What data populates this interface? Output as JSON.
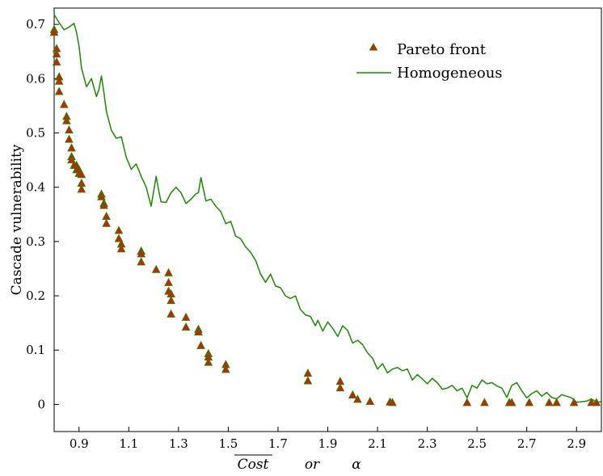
{
  "chart_data": {
    "type": "scatter",
    "xlabel": {
      "part1": "Cost",
      "part2": "or",
      "part3": "α"
    },
    "ylabel": "Cascade vulnerability",
    "xlim": [
      0.8,
      3.0
    ],
    "ylim": [
      -0.05,
      0.73
    ],
    "xticks": [
      "0.9",
      "1.1",
      "1.3",
      "1.5",
      "1.7",
      "1.9",
      "2.1",
      "2.3",
      "2.5",
      "2.7",
      "2.9"
    ],
    "yticks": [
      "0",
      "0.1",
      "0.2",
      "0.3",
      "0.4",
      "0.5",
      "0.6",
      "0.7"
    ],
    "grid": false,
    "legend_position": "top-right",
    "colors": {
      "pareto_fill": "#cc2200",
      "pareto_edge": "#2e7d00",
      "line": "#1a8a00"
    },
    "series": [
      {
        "name": "Pareto front",
        "kind": "markers",
        "points": [
          [
            0.8,
            0.69
          ],
          [
            0.8,
            0.685
          ],
          [
            0.81,
            0.655
          ],
          [
            0.81,
            0.645
          ],
          [
            0.81,
            0.63
          ],
          [
            0.82,
            0.603
          ],
          [
            0.82,
            0.595
          ],
          [
            0.82,
            0.576
          ],
          [
            0.84,
            0.552
          ],
          [
            0.85,
            0.53
          ],
          [
            0.85,
            0.522
          ],
          [
            0.86,
            0.505
          ],
          [
            0.86,
            0.488
          ],
          [
            0.87,
            0.472
          ],
          [
            0.87,
            0.456
          ],
          [
            0.87,
            0.45
          ],
          [
            0.88,
            0.44
          ],
          [
            0.89,
            0.44
          ],
          [
            0.89,
            0.432
          ],
          [
            0.9,
            0.432
          ],
          [
            0.9,
            0.425
          ],
          [
            0.91,
            0.423
          ],
          [
            0.91,
            0.407
          ],
          [
            0.91,
            0.396
          ],
          [
            0.99,
            0.387
          ],
          [
            0.99,
            0.382
          ],
          [
            1.0,
            0.37
          ],
          [
            1.0,
            0.366
          ],
          [
            1.01,
            0.346
          ],
          [
            1.01,
            0.333
          ],
          [
            1.06,
            0.32
          ],
          [
            1.06,
            0.305
          ],
          [
            1.07,
            0.295
          ],
          [
            1.07,
            0.286
          ],
          [
            1.15,
            0.282
          ],
          [
            1.15,
            0.277
          ],
          [
            1.15,
            0.262
          ],
          [
            1.21,
            0.248
          ],
          [
            1.26,
            0.242
          ],
          [
            1.26,
            0.224
          ],
          [
            1.26,
            0.208
          ],
          [
            1.27,
            0.203
          ],
          [
            1.27,
            0.191
          ],
          [
            1.27,
            0.166
          ],
          [
            1.33,
            0.16
          ],
          [
            1.33,
            0.142
          ],
          [
            1.38,
            0.138
          ],
          [
            1.38,
            0.133
          ],
          [
            1.39,
            0.108
          ],
          [
            1.42,
            0.093
          ],
          [
            1.42,
            0.087
          ],
          [
            1.42,
            0.077
          ],
          [
            1.49,
            0.073
          ],
          [
            1.49,
            0.064
          ],
          [
            1.82,
            0.057
          ],
          [
            1.82,
            0.043
          ],
          [
            1.95,
            0.042
          ],
          [
            1.95,
            0.03
          ],
          [
            2.0,
            0.017
          ],
          [
            2.02,
            0.009
          ],
          [
            2.07,
            0.005
          ],
          [
            2.15,
            0.004
          ],
          [
            2.16,
            0.003
          ],
          [
            2.46,
            0.003
          ],
          [
            2.53,
            0.003
          ],
          [
            2.63,
            0.003
          ],
          [
            2.64,
            0.003
          ],
          [
            2.71,
            0.003
          ],
          [
            2.79,
            0.003
          ],
          [
            2.82,
            0.003
          ],
          [
            2.89,
            0.003
          ],
          [
            2.96,
            0.003
          ],
          [
            2.98,
            0.003
          ]
        ]
      },
      {
        "name": "Homogeneous",
        "kind": "line",
        "points": [
          [
            0.8,
            0.718
          ],
          [
            0.82,
            0.703
          ],
          [
            0.84,
            0.69
          ],
          [
            0.86,
            0.695
          ],
          [
            0.88,
            0.702
          ],
          [
            0.89,
            0.685
          ],
          [
            0.9,
            0.66
          ],
          [
            0.91,
            0.62
          ],
          [
            0.93,
            0.585
          ],
          [
            0.95,
            0.6
          ],
          [
            0.97,
            0.567
          ],
          [
            0.98,
            0.58
          ],
          [
            0.99,
            0.605
          ],
          [
            1.0,
            0.575
          ],
          [
            1.01,
            0.54
          ],
          [
            1.03,
            0.505
          ],
          [
            1.05,
            0.49
          ],
          [
            1.07,
            0.493
          ],
          [
            1.09,
            0.455
          ],
          [
            1.11,
            0.433
          ],
          [
            1.13,
            0.443
          ],
          [
            1.15,
            0.42
          ],
          [
            1.17,
            0.4
          ],
          [
            1.19,
            0.365
          ],
          [
            1.21,
            0.42
          ],
          [
            1.22,
            0.395
          ],
          [
            1.23,
            0.373
          ],
          [
            1.25,
            0.372
          ],
          [
            1.27,
            0.39
          ],
          [
            1.29,
            0.4
          ],
          [
            1.31,
            0.39
          ],
          [
            1.33,
            0.37
          ],
          [
            1.35,
            0.378
          ],
          [
            1.37,
            0.388
          ],
          [
            1.38,
            0.39
          ],
          [
            1.39,
            0.418
          ],
          [
            1.41,
            0.375
          ],
          [
            1.43,
            0.378
          ],
          [
            1.45,
            0.365
          ],
          [
            1.47,
            0.355
          ],
          [
            1.49,
            0.333
          ],
          [
            1.51,
            0.337
          ],
          [
            1.53,
            0.31
          ],
          [
            1.55,
            0.305
          ],
          [
            1.57,
            0.29
          ],
          [
            1.59,
            0.28
          ],
          [
            1.61,
            0.265
          ],
          [
            1.63,
            0.24
          ],
          [
            1.65,
            0.225
          ],
          [
            1.67,
            0.24
          ],
          [
            1.69,
            0.218
          ],
          [
            1.71,
            0.215
          ],
          [
            1.73,
            0.2
          ],
          [
            1.75,
            0.195
          ],
          [
            1.77,
            0.2
          ],
          [
            1.79,
            0.175
          ],
          [
            1.81,
            0.165
          ],
          [
            1.83,
            0.162
          ],
          [
            1.85,
            0.145
          ],
          [
            1.86,
            0.155
          ],
          [
            1.88,
            0.135
          ],
          [
            1.9,
            0.152
          ],
          [
            1.92,
            0.14
          ],
          [
            1.94,
            0.125
          ],
          [
            1.96,
            0.145
          ],
          [
            1.98,
            0.136
          ],
          [
            2.0,
            0.113
          ],
          [
            2.02,
            0.118
          ],
          [
            2.04,
            0.11
          ],
          [
            2.06,
            0.095
          ],
          [
            2.08,
            0.085
          ],
          [
            2.1,
            0.065
          ],
          [
            2.12,
            0.075
          ],
          [
            2.14,
            0.058
          ],
          [
            2.16,
            0.065
          ],
          [
            2.18,
            0.068
          ],
          [
            2.2,
            0.062
          ],
          [
            2.22,
            0.065
          ],
          [
            2.24,
            0.045
          ],
          [
            2.26,
            0.055
          ],
          [
            2.28,
            0.047
          ],
          [
            2.3,
            0.038
          ],
          [
            2.32,
            0.048
          ],
          [
            2.34,
            0.04
          ],
          [
            2.36,
            0.028
          ],
          [
            2.38,
            0.03
          ],
          [
            2.4,
            0.035
          ],
          [
            2.42,
            0.025
          ],
          [
            2.44,
            0.03
          ],
          [
            2.46,
            0.012
          ],
          [
            2.48,
            0.035
          ],
          [
            2.5,
            0.03
          ],
          [
            2.52,
            0.045
          ],
          [
            2.54,
            0.038
          ],
          [
            2.56,
            0.04
          ],
          [
            2.58,
            0.034
          ],
          [
            2.6,
            0.03
          ],
          [
            2.62,
            0.013
          ],
          [
            2.64,
            0.035
          ],
          [
            2.66,
            0.04
          ],
          [
            2.68,
            0.025
          ],
          [
            2.7,
            0.012
          ],
          [
            2.72,
            0.02
          ],
          [
            2.74,
            0.025
          ],
          [
            2.76,
            0.015
          ],
          [
            2.78,
            0.022
          ],
          [
            2.8,
            0.013
          ],
          [
            2.82,
            0.01
          ],
          [
            2.84,
            0.018
          ],
          [
            2.86,
            0.015
          ],
          [
            2.88,
            0.012
          ],
          [
            2.9,
            0.004
          ],
          [
            2.92,
            0.005
          ],
          [
            2.94,
            0.006
          ],
          [
            2.96,
            0.01
          ],
          [
            2.98,
            0.004
          ],
          [
            3.0,
            0.005
          ]
        ]
      }
    ]
  }
}
